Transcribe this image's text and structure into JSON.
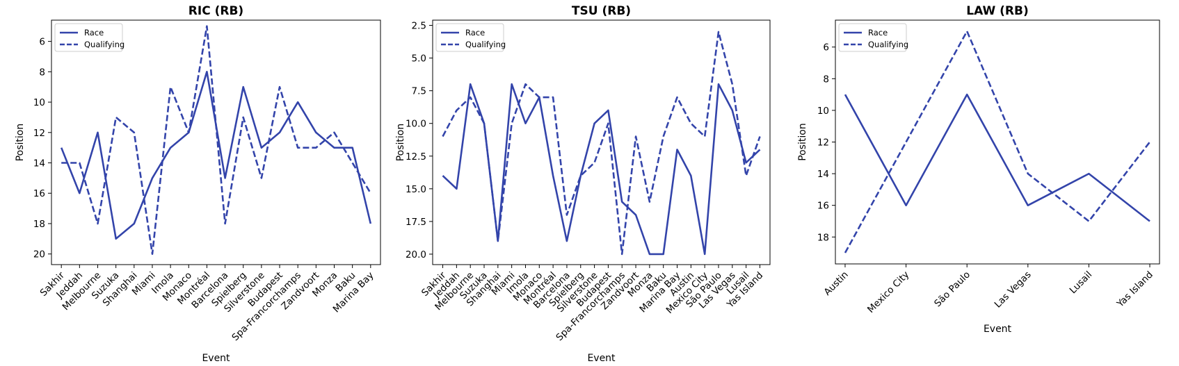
{
  "colors": {
    "series": "#3344aa",
    "axis": "#000000",
    "legend_border": "#cccccc"
  },
  "chart_data": [
    {
      "type": "line",
      "title": "RIC (RB)",
      "xlabel": "Event",
      "ylabel": "Position",
      "y_inverted": true,
      "ylim": [
        20.7,
        4.6
      ],
      "yticks": [
        6,
        8,
        10,
        12,
        14,
        16,
        18,
        20
      ],
      "ytick_labels": [
        "6",
        "8",
        "10",
        "12",
        "14",
        "16",
        "18",
        "20"
      ],
      "grid": false,
      "legend": "top-left",
      "categories": [
        "Sakhir",
        "Jeddah",
        "Melbourne",
        "Suzuka",
        "Shanghai",
        "Miami",
        "Imola",
        "Monaco",
        "Montréal",
        "Barcelona",
        "Spielberg",
        "Silverstone",
        "Budapest",
        "Spa-Francorchamps",
        "Zandvoort",
        "Monza",
        "Baku",
        "Marina Bay"
      ],
      "series": [
        {
          "name": "Race",
          "style": "solid",
          "values": [
            13,
            16,
            12,
            19,
            18,
            15,
            13,
            12,
            8,
            15,
            9,
            13,
            12,
            10,
            12,
            13,
            13,
            18
          ]
        },
        {
          "name": "Qualifying",
          "style": "dashed",
          "values": [
            14,
            14,
            18,
            11,
            12,
            20,
            9,
            12,
            5,
            18,
            11,
            15,
            9,
            13,
            13,
            12,
            14,
            16
          ]
        }
      ]
    },
    {
      "type": "line",
      "title": "TSU (RB)",
      "xlabel": "Event",
      "ylabel": "Position",
      "y_inverted": true,
      "ylim": [
        20.8,
        2.1
      ],
      "yticks": [
        2.5,
        5.0,
        7.5,
        10.0,
        12.5,
        15.0,
        17.5,
        20.0
      ],
      "ytick_labels": [
        "2.5",
        "5.0",
        "7.5",
        "10.0",
        "12.5",
        "15.0",
        "17.5",
        "20.0"
      ],
      "grid": false,
      "legend": "top-left",
      "categories": [
        "Sakhir",
        "Jeddah",
        "Melbourne",
        "Suzuka",
        "Shanghai",
        "Miami",
        "Imola",
        "Monaco",
        "Montréal",
        "Barcelona",
        "Spielberg",
        "Silverstone",
        "Budapest",
        "Spa-Francorchamps",
        "Zandvoort",
        "Monza",
        "Baku",
        "Marina Bay",
        "Austin",
        "Mexico City",
        "São Paulo",
        "Las Vegas",
        "Lusail",
        "Yas Island"
      ],
      "series": [
        {
          "name": "Race",
          "style": "solid",
          "values": [
            14,
            15,
            7,
            10,
            19,
            7,
            10,
            8,
            14,
            19,
            14,
            10,
            9,
            16,
            17,
            20,
            20,
            12,
            14,
            20,
            7,
            9,
            13,
            12
          ]
        },
        {
          "name": "Qualifying",
          "style": "dashed",
          "values": [
            11,
            9,
            8,
            10,
            19,
            10,
            7,
            8,
            8,
            17,
            14,
            13,
            10,
            20,
            11,
            16,
            11,
            8,
            10,
            11,
            3,
            7,
            14,
            11
          ]
        }
      ]
    },
    {
      "type": "line",
      "title": "LAW (RB)",
      "xlabel": "Event",
      "ylabel": "Position",
      "y_inverted": true,
      "ylim": [
        19.7,
        4.3
      ],
      "yticks": [
        6,
        8,
        10,
        12,
        14,
        16,
        18
      ],
      "ytick_labels": [
        "6",
        "8",
        "10",
        "12",
        "14",
        "16",
        "18"
      ],
      "grid": false,
      "legend": "top-left",
      "categories": [
        "Austin",
        "Mexico City",
        "São Paulo",
        "Las Vegas",
        "Lusail",
        "Yas Island"
      ],
      "series": [
        {
          "name": "Race",
          "style": "solid",
          "values": [
            9,
            16,
            9,
            16,
            14,
            17
          ]
        },
        {
          "name": "Qualifying",
          "style": "dashed",
          "values": [
            19,
            12,
            5,
            14,
            17,
            12
          ]
        }
      ]
    }
  ]
}
